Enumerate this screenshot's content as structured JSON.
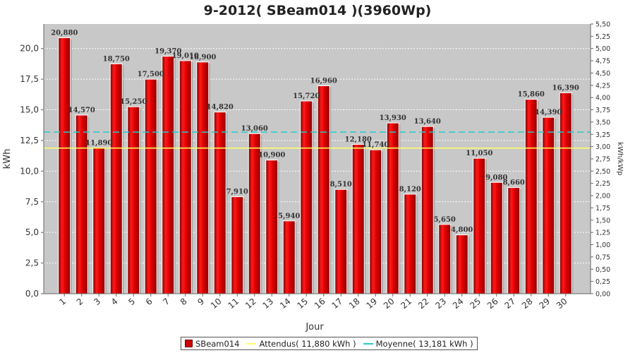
{
  "chart_data": {
    "type": "bar",
    "title": "9-2012( SBeam014 )(3960Wp)",
    "xlabel": "Jour",
    "ylabel": "kWh",
    "y2label": "kWh/kWp",
    "ylim": [
      0,
      22
    ],
    "yticks": [
      "0,0",
      "2,5",
      "5,0",
      "7,5",
      "10,0",
      "12,5",
      "15,0",
      "17,5",
      "20,0"
    ],
    "y2lim": [
      0,
      5.5
    ],
    "y2ticks": [
      "0,00",
      "0,25",
      "0,50",
      "0,75",
      "1,00",
      "1,25",
      "1,50",
      "1,75",
      "2,00",
      "2,25",
      "2,50",
      "2,75",
      "3,00",
      "3,25",
      "3,50",
      "3,75",
      "4,00",
      "4,25",
      "4,50",
      "4,75",
      "5,00",
      "5,25",
      "5,50"
    ],
    "categories": [
      "1",
      "2",
      "3",
      "4",
      "5",
      "6",
      "7",
      "8",
      "9",
      "10",
      "11",
      "12",
      "13",
      "14",
      "15",
      "16",
      "17",
      "18",
      "19",
      "20",
      "21",
      "22",
      "23",
      "24",
      "25",
      "26",
      "27",
      "28",
      "29",
      "30"
    ],
    "series": [
      {
        "name": "SBeam014",
        "values": [
          20.88,
          14.57,
          11.89,
          18.75,
          15.25,
          17.5,
          19.37,
          19.01,
          18.9,
          14.82,
          7.91,
          13.06,
          10.9,
          5.94,
          15.72,
          16.96,
          8.51,
          12.18,
          11.74,
          13.93,
          8.12,
          13.64,
          5.65,
          4.8,
          11.05,
          9.08,
          8.66,
          15.86,
          14.39,
          16.39
        ],
        "labels": [
          "20,880",
          "14,570",
          "11,890",
          "18,750",
          "15,250",
          "17,500",
          "19,370",
          "19,010",
          "18,900",
          "14,820",
          "7,910",
          "13,060",
          "10,900",
          "5,940",
          "15,720",
          "16,960",
          "8,510",
          "12,180",
          "11,740",
          "13,930",
          "8,120",
          "13,640",
          "5,650",
          "4,800",
          "11,050",
          "9,080",
          "8,660",
          "15,860",
          "14,390",
          "16,390"
        ],
        "color": "#dd0000"
      }
    ],
    "reference_lines": [
      {
        "name": "Attendus",
        "value": 11.88,
        "color": "#ffff66",
        "style": "solid"
      },
      {
        "name": "Moyenne",
        "value": 13.181,
        "color": "#22cccc",
        "style": "dashed"
      }
    ],
    "plot_background": "#c8c8c8",
    "grid": true,
    "legend_position": "bottom"
  },
  "legend": {
    "bar_label": "SBeam014",
    "expected_label": "Attendus( 11,880 kWh )",
    "mean_label": "Moyenne( 13,181 kWh )"
  }
}
